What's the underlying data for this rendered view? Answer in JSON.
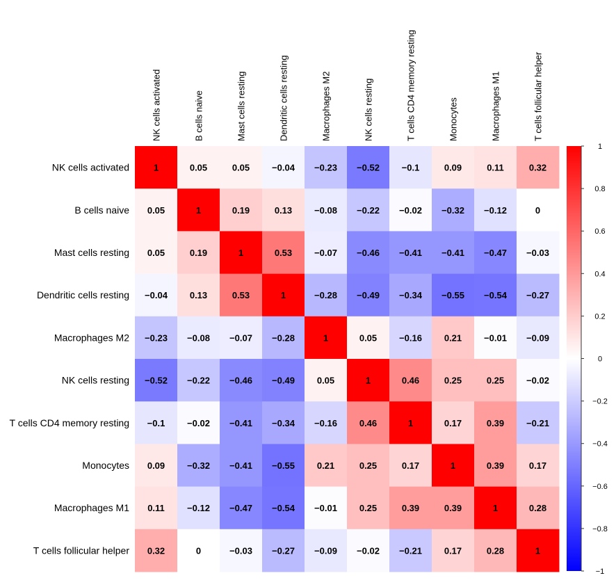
{
  "chart_data": {
    "type": "heatmap",
    "title": "",
    "row_labels": [
      "NK cells activated",
      "B cells naive",
      "Mast cells resting",
      "Dendritic cells resting",
      "Macrophages M2",
      "NK cells resting",
      "T cells CD4 memory resting",
      "Monocytes",
      "Macrophages M1",
      "T cells follicular helper"
    ],
    "col_labels": [
      "NK cells activated",
      "B cells naive",
      "Mast cells resting",
      "Dendritic cells resting",
      "Macrophages M2",
      "NK cells resting",
      "T cells CD4 memory resting",
      "Monocytes",
      "Macrophages M1",
      "T cells follicular helper"
    ],
    "values": [
      [
        1,
        0.05,
        0.05,
        -0.04,
        -0.23,
        -0.52,
        -0.1,
        0.09,
        0.11,
        0.32
      ],
      [
        0.05,
        1,
        0.19,
        0.13,
        -0.08,
        -0.22,
        -0.02,
        -0.32,
        -0.12,
        0
      ],
      [
        0.05,
        0.19,
        1,
        0.53,
        -0.07,
        -0.46,
        -0.41,
        -0.41,
        -0.47,
        -0.03
      ],
      [
        -0.04,
        0.13,
        0.53,
        1,
        -0.28,
        -0.49,
        -0.34,
        -0.55,
        -0.54,
        -0.27
      ],
      [
        -0.23,
        -0.08,
        -0.07,
        -0.28,
        1,
        0.05,
        -0.16,
        0.21,
        -0.01,
        -0.09
      ],
      [
        -0.52,
        -0.22,
        -0.46,
        -0.49,
        0.05,
        1,
        0.46,
        0.25,
        0.25,
        -0.02
      ],
      [
        -0.1,
        -0.02,
        -0.41,
        -0.34,
        -0.16,
        0.46,
        1,
        0.17,
        0.39,
        -0.21
      ],
      [
        0.09,
        -0.32,
        -0.41,
        -0.55,
        0.21,
        0.25,
        0.17,
        1,
        0.39,
        0.17
      ],
      [
        0.11,
        -0.12,
        -0.47,
        -0.54,
        -0.01,
        0.25,
        0.39,
        0.39,
        1,
        0.28
      ],
      [
        0.32,
        0,
        -0.03,
        -0.27,
        -0.09,
        -0.02,
        -0.21,
        0.17,
        0.28,
        1
      ]
    ],
    "value_labels": [
      [
        "1",
        "0.05",
        "0.05",
        "−0.04",
        "−0.23",
        "−0.52",
        "−0.1",
        "0.09",
        "0.11",
        "0.32"
      ],
      [
        "0.05",
        "1",
        "0.19",
        "0.13",
        "−0.08",
        "−0.22",
        "−0.02",
        "−0.32",
        "−0.12",
        "0"
      ],
      [
        "0.05",
        "0.19",
        "1",
        "0.53",
        "−0.07",
        "−0.46",
        "−0.41",
        "−0.41",
        "−0.47",
        "−0.03"
      ],
      [
        "−0.04",
        "0.13",
        "0.53",
        "1",
        "−0.28",
        "−0.49",
        "−0.34",
        "−0.55",
        "−0.54",
        "−0.27"
      ],
      [
        "−0.23",
        "−0.08",
        "−0.07",
        "−0.28",
        "1",
        "0.05",
        "−0.16",
        "0.21",
        "−0.01",
        "−0.09"
      ],
      [
        "−0.52",
        "−0.22",
        "−0.46",
        "−0.49",
        "0.05",
        "1",
        "0.46",
        "0.25",
        "0.25",
        "−0.02"
      ],
      [
        "−0.1",
        "−0.02",
        "−0.41",
        "−0.34",
        "−0.16",
        "0.46",
        "1",
        "0.17",
        "0.39",
        "−0.21"
      ],
      [
        "0.09",
        "−0.32",
        "−0.41",
        "−0.55",
        "0.21",
        "0.25",
        "0.17",
        "1",
        "0.39",
        "0.17"
      ],
      [
        "0.11",
        "−0.12",
        "−0.47",
        "−0.54",
        "−0.01",
        "0.25",
        "0.39",
        "0.39",
        "1",
        "0.28"
      ],
      [
        "0.32",
        "0",
        "−0.03",
        "−0.27",
        "−0.09",
        "−0.02",
        "−0.21",
        "0.17",
        "0.28",
        "1"
      ]
    ],
    "color_range": [
      -1,
      1
    ],
    "color_low": "#0000ff",
    "color_mid": "#ffffff",
    "color_high": "#ff0000",
    "colorbar_ticks": [
      1,
      0.8,
      0.6,
      0.4,
      0.2,
      0,
      -0.2,
      -0.4,
      -0.6,
      -0.8,
      -1
    ],
    "colorbar_tick_labels": [
      "1",
      "0.8",
      "0.6",
      "0.4",
      "0.2",
      "0",
      "−0.2",
      "−0.4",
      "−0.6",
      "−0.8",
      "−1"
    ],
    "legend_position": "right"
  }
}
